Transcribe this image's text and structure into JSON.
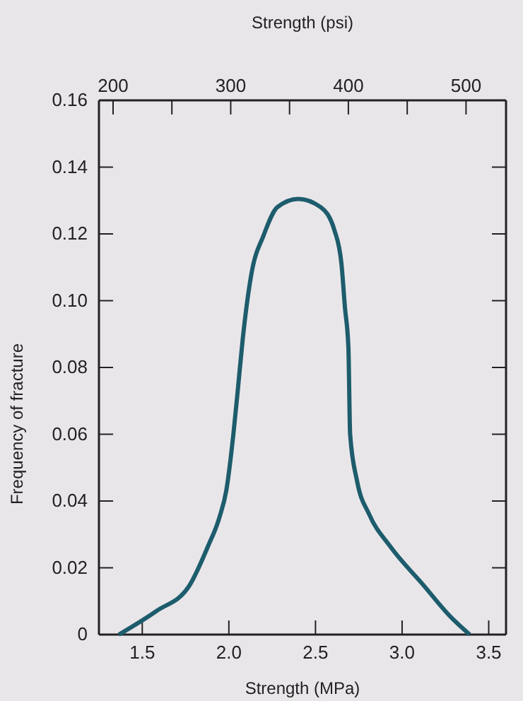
{
  "chart_data": {
    "type": "line",
    "xlabel": "Strength (MPa)",
    "ylabel": "Frequency of fracture",
    "x2label": "Strength (psi)",
    "xlim": [
      1.25,
      3.6
    ],
    "xticks": [
      {
        "value": 1.5,
        "label": "1.5"
      },
      {
        "value": 2.0,
        "label": "2.0"
      },
      {
        "value": 2.5,
        "label": "2.5"
      },
      {
        "value": 3.0,
        "label": "3.0"
      },
      {
        "value": 3.5,
        "label": "3.5"
      }
    ],
    "x2lim": [
      188,
      534
    ],
    "x2ticks": [
      200,
      {
        "value": 250,
        "label": null
      },
      300,
      {
        "value": 350,
        "label": null
      },
      400,
      {
        "value": 450,
        "label": null
      },
      500
    ],
    "ylim": [
      0,
      0.16
    ],
    "yticks": [
      {
        "value": 0,
        "label": "0"
      },
      {
        "value": 0.02,
        "label": "0.02"
      },
      {
        "value": 0.04,
        "label": "0.04"
      },
      {
        "value": 0.06,
        "label": "0.06"
      },
      {
        "value": 0.08,
        "label": "0.08"
      },
      {
        "value": 0.1,
        "label": "0.10"
      },
      {
        "value": 0.12,
        "label": "0.12"
      },
      {
        "value": 0.14,
        "label": "0.14"
      },
      {
        "value": 0.16,
        "label": "0.16"
      }
    ],
    "grid": false,
    "marker": "none",
    "line_style": "solid",
    "series": [
      {
        "color": "#1d5c6c",
        "x": [
          1.365,
          1.58,
          1.77,
          1.88,
          1.945,
          1.986,
          2.026,
          2.053,
          2.08,
          2.13,
          2.2,
          2.28,
          2.4,
          2.53,
          2.61,
          2.65,
          2.67,
          2.69,
          2.7,
          2.74,
          2.81,
          2.93,
          3.12,
          3.28,
          3.39
        ],
        "values": [
          0,
          0.007,
          0.0145,
          0.0265,
          0.035,
          0.0434,
          0.06,
          0.074,
          0.0885,
          0.108,
          0.1195,
          0.128,
          0.1305,
          0.128,
          0.121,
          0.111,
          0.098,
          0.086,
          0.06,
          0.046,
          0.036,
          0.0265,
          0.015,
          0.0053,
          0
        ]
      }
    ]
  }
}
